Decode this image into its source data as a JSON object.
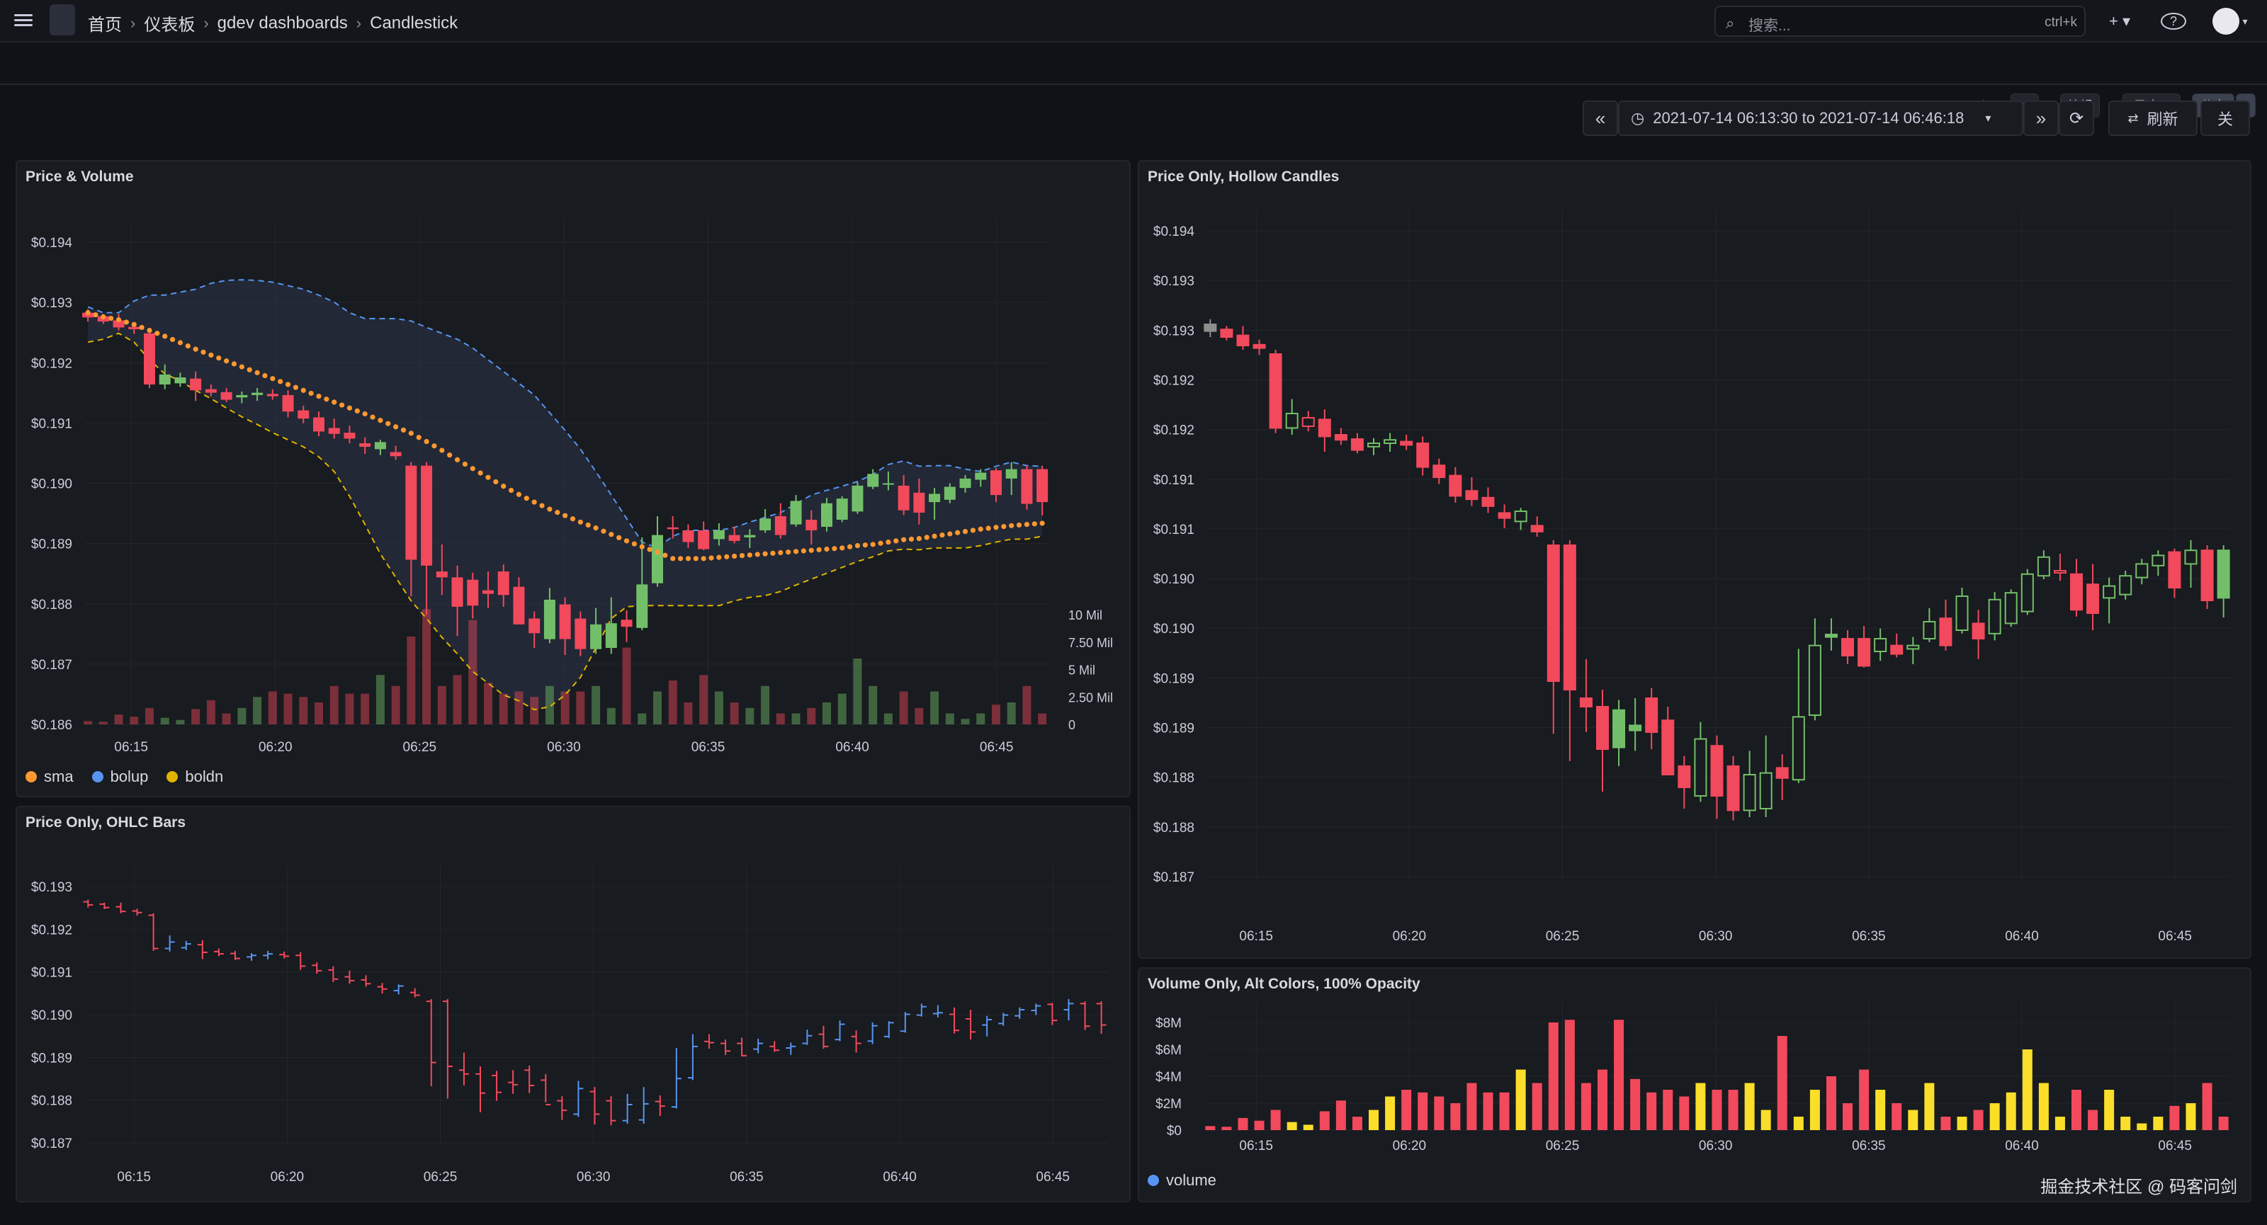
{
  "topbar": {
    "breadcrumb": [
      "首页",
      "仪表板",
      "gdev dashboards",
      "Candlestick"
    ],
    "search_placeholder": "搜索...",
    "search_shortcut": "ctrl+k",
    "add_label": "+ ▾",
    "help_label": "?"
  },
  "toolbar": {
    "star_icon": "star-icon",
    "edit_label": "编辑",
    "export_label": "导出 ▾",
    "share_label": "分享",
    "time_range": "2021-07-14 06:13:30 to 2021-07-14 06:46:18",
    "refresh_label": "刷新",
    "off_label": "关"
  },
  "colors": {
    "up": "#73bf69",
    "down": "#f2495c",
    "ohlc_up": "#5794f2",
    "yellow": "#fade2a",
    "sma": "#ff9830",
    "bolup": "#5794f2",
    "boldn": "#e0b400",
    "band": "#2a3244"
  },
  "watermark": "掘金技术社区 @ 码客问剑",
  "chart_data": [
    {
      "id": "price_volume",
      "title": "Price & Volume",
      "type": "candlestick",
      "xlabels": [
        "06:15",
        "06:20",
        "06:25",
        "06:30",
        "06:35",
        "06:40",
        "06:45"
      ],
      "xticks_min": [
        15,
        20,
        25,
        30,
        35,
        40,
        45
      ],
      "xlim_min": [
        13.4,
        46.8
      ],
      "ylabels": [
        "$0.194",
        "$0.193",
        "$0.192",
        "$0.191",
        "$0.190",
        "$0.189",
        "$0.188",
        "$0.187",
        "$0.186"
      ],
      "ylim": [
        0.186,
        0.1942
      ],
      "vol_labels": [
        "10 Mil",
        "7.50 Mil",
        "5 Mil",
        "2.50 Mil",
        "0"
      ],
      "vol_max": 10000000,
      "legend": [
        {
          "name": "sma",
          "color": "#ff9830"
        },
        {
          "name": "bolup",
          "color": "#5794f2"
        },
        {
          "name": "boldn",
          "color": "#e0b400"
        }
      ],
      "ohlc": [
        [
          0.193,
          0.19306,
          0.19285,
          0.19292
        ],
        [
          0.19294,
          0.19298,
          0.19281,
          0.19285
        ],
        [
          0.19287,
          0.19298,
          0.1927,
          0.19275
        ],
        [
          0.19276,
          0.19282,
          0.19264,
          0.19272
        ],
        [
          0.19265,
          0.1927,
          0.19172,
          0.19178
        ],
        [
          0.19178,
          0.19212,
          0.1917,
          0.19195
        ],
        [
          0.1918,
          0.19198,
          0.19174,
          0.1919
        ],
        [
          0.19188,
          0.192,
          0.1915,
          0.19168
        ],
        [
          0.1917,
          0.19178,
          0.19158,
          0.19164
        ],
        [
          0.19165,
          0.19172,
          0.19148,
          0.19152
        ],
        [
          0.19156,
          0.19166,
          0.19146,
          0.1916
        ],
        [
          0.1916,
          0.19172,
          0.1915,
          0.19164
        ],
        [
          0.19162,
          0.1917,
          0.19152,
          0.19158
        ],
        [
          0.1916,
          0.19168,
          0.19122,
          0.19132
        ],
        [
          0.19134,
          0.19142,
          0.19112,
          0.1912
        ],
        [
          0.19122,
          0.19132,
          0.1909,
          0.19098
        ],
        [
          0.19104,
          0.1912,
          0.19086,
          0.19094
        ],
        [
          0.19096,
          0.19108,
          0.19078,
          0.19086
        ],
        [
          0.19078,
          0.19088,
          0.1906,
          0.19072
        ],
        [
          0.19068,
          0.19084,
          0.19058,
          0.1908
        ],
        [
          0.19063,
          0.19074,
          0.1905,
          0.19056
        ],
        [
          0.1904,
          0.19046,
          0.18818,
          0.1888
        ],
        [
          0.1904,
          0.19046,
          0.18786,
          0.1887
        ],
        [
          0.1886,
          0.18906,
          0.1882,
          0.1885
        ],
        [
          0.1885,
          0.1887,
          0.1875,
          0.188
        ],
        [
          0.18846,
          0.18858,
          0.1878,
          0.18802
        ],
        [
          0.18828,
          0.1886,
          0.18798,
          0.18822
        ],
        [
          0.1886,
          0.18872,
          0.188,
          0.1882
        ],
        [
          0.18834,
          0.1885,
          0.18776,
          0.1877
        ],
        [
          0.1878,
          0.18792,
          0.1873,
          0.18755
        ],
        [
          0.18745,
          0.18832,
          0.18738,
          0.18812
        ],
        [
          0.18804,
          0.18816,
          0.18718,
          0.18745
        ],
        [
          0.1878,
          0.18792,
          0.18716,
          0.18728
        ],
        [
          0.18728,
          0.18798,
          0.1872,
          0.1877
        ],
        [
          0.1873,
          0.18816,
          0.1872,
          0.18772
        ],
        [
          0.18778,
          0.18794,
          0.1874,
          0.18766
        ],
        [
          0.18764,
          0.18918,
          0.1876,
          0.18838
        ],
        [
          0.1884,
          0.18954,
          0.18834,
          0.18922
        ],
        [
          0.18935,
          0.18954,
          0.18916,
          0.18932
        ],
        [
          0.1893,
          0.1894,
          0.189,
          0.1891
        ],
        [
          0.1893,
          0.18945,
          0.18896,
          0.18898
        ],
        [
          0.18915,
          0.18942,
          0.18904,
          0.1893
        ],
        [
          0.18922,
          0.18936,
          0.18908,
          0.18912
        ],
        [
          0.18918,
          0.18932,
          0.189,
          0.18922
        ],
        [
          0.1893,
          0.18966,
          0.18926,
          0.1895
        ],
        [
          0.18954,
          0.18976,
          0.18916,
          0.18922
        ],
        [
          0.1894,
          0.1899,
          0.18936,
          0.1898
        ],
        [
          0.18948,
          0.18964,
          0.18906,
          0.1893
        ],
        [
          0.18936,
          0.18985,
          0.18928,
          0.18976
        ],
        [
          0.18948,
          0.18988,
          0.18944,
          0.18984
        ],
        [
          0.18962,
          0.19012,
          0.18958,
          0.19006
        ],
        [
          0.19004,
          0.19034,
          0.19,
          0.19026
        ],
        [
          0.19008,
          0.1903,
          0.18998,
          0.1901
        ],
        [
          0.19006,
          0.19024,
          0.18956,
          0.18964
        ],
        [
          0.18994,
          0.19018,
          0.1894,
          0.1896
        ],
        [
          0.18978,
          0.19002,
          0.18948,
          0.18992
        ],
        [
          0.18982,
          0.1901,
          0.18976,
          0.19004
        ],
        [
          0.19002,
          0.19024,
          0.18994,
          0.19018
        ],
        [
          0.19016,
          0.19034,
          0.19004,
          0.19028
        ],
        [
          0.19032,
          0.19036,
          0.18978,
          0.1899
        ],
        [
          0.19018,
          0.19046,
          0.1899,
          0.19034
        ],
        [
          0.19034,
          0.1904,
          0.18965,
          0.18975
        ],
        [
          0.19034,
          0.1904,
          0.18955,
          0.18978
        ]
      ],
      "volume": [
        300000,
        250000,
        900000,
        700000,
        1500000,
        600000,
        400000,
        1400000,
        2200000,
        1000000,
        1500000,
        2500000,
        3000000,
        2800000,
        2500000,
        2000000,
        3500000,
        2800000,
        2800000,
        4500000,
        3500000,
        8000000,
        15000000,
        3500000,
        4500000,
        9500000,
        3800000,
        2800000,
        3000000,
        2500000,
        3500000,
        3000000,
        3000000,
        3500000,
        1500000,
        7000000,
        1000000,
        3000000,
        4000000,
        2000000,
        4500000,
        3000000,
        2000000,
        1500000,
        3500000,
        1000000,
        1000000,
        1500000,
        2000000,
        2800000,
        6000000,
        3500000,
        1000000,
        3000000,
        1500000,
        3000000,
        1000000,
        500000,
        1000000,
        1800000,
        2000000,
        3500000,
        1000000
      ],
      "sma": [
        0.193,
        0.19293,
        0.19288,
        0.1928,
        0.1927,
        0.1926,
        0.19249,
        0.19238,
        0.19228,
        0.19218,
        0.19208,
        0.19198,
        0.19188,
        0.19178,
        0.19168,
        0.19158,
        0.19148,
        0.19138,
        0.19128,
        0.19117,
        0.19106,
        0.19095,
        0.19081,
        0.19066,
        0.1905,
        0.19035,
        0.1902,
        0.19005,
        0.18991,
        0.18978,
        0.18966,
        0.18955,
        0.18944,
        0.18934,
        0.18923,
        0.18912,
        0.18902,
        0.18893,
        0.18882,
        0.18882,
        0.18882,
        0.18884,
        0.18886,
        0.18888,
        0.1889,
        0.18892,
        0.18894,
        0.18896,
        0.18898,
        0.189,
        0.18904,
        0.18906,
        0.1891,
        0.18914,
        0.18916,
        0.1892,
        0.18924,
        0.18928,
        0.18932,
        0.18935,
        0.18938,
        0.1894,
        0.18942
      ],
      "bolup": [
        0.1931,
        0.193,
        0.193,
        0.1932,
        0.1933,
        0.1933,
        0.19335,
        0.1934,
        0.1935,
        0.19355,
        0.19356,
        0.19355,
        0.19352,
        0.19346,
        0.1934,
        0.1933,
        0.19318,
        0.193,
        0.1929,
        0.1929,
        0.1929,
        0.19286,
        0.19275,
        0.19265,
        0.19255,
        0.1924,
        0.1922,
        0.192,
        0.1918,
        0.1916,
        0.1913,
        0.191,
        0.19068,
        0.1903,
        0.1899,
        0.1895,
        0.1891,
        0.189,
        0.1892,
        0.1893,
        0.1893,
        0.1893,
        0.18935,
        0.18944,
        0.18952,
        0.1896,
        0.18975,
        0.1899,
        0.18998,
        0.19005,
        0.19013,
        0.19025,
        0.19042,
        0.19048,
        0.19039,
        0.1904,
        0.1904,
        0.19034,
        0.1903,
        0.19039,
        0.19046,
        0.1904,
        0.19039
      ],
      "boldn": [
        0.1925,
        0.19255,
        0.19265,
        0.1925,
        0.1922,
        0.19196,
        0.19184,
        0.19168,
        0.19154,
        0.19138,
        0.19123,
        0.1911,
        0.19096,
        0.19084,
        0.19072,
        0.19055,
        0.1903,
        0.18988,
        0.1894,
        0.1889,
        0.1885,
        0.1881,
        0.1878,
        0.18748,
        0.1872,
        0.1869,
        0.1867,
        0.1865,
        0.1864,
        0.18625,
        0.1863,
        0.1865,
        0.1868,
        0.1873,
        0.1878,
        0.188,
        0.18802,
        0.18802,
        0.18802,
        0.18802,
        0.18802,
        0.18802,
        0.1881,
        0.18816,
        0.18819,
        0.18826,
        0.18837,
        0.18847,
        0.18857,
        0.18867,
        0.18877,
        0.18885,
        0.18895,
        0.18898,
        0.18897,
        0.189,
        0.189,
        0.189,
        0.18904,
        0.1891,
        0.18915,
        0.18915,
        0.1892
      ]
    },
    {
      "id": "ohlc_bars",
      "title": "Price Only, OHLC Bars",
      "type": "ohlc",
      "xlabels": [
        "06:15",
        "06:20",
        "06:25",
        "06:30",
        "06:35",
        "06:40",
        "06:45"
      ],
      "xticks_min": [
        15,
        20,
        25,
        30,
        35,
        40,
        45
      ],
      "xlim_min": [
        13.4,
        46.8
      ],
      "ylabels": [
        "$0.193",
        "$0.192",
        "$0.191",
        "$0.190",
        "$0.189",
        "$0.188",
        "$0.187"
      ],
      "ylim": [
        0.1867,
        0.1934
      ]
    },
    {
      "id": "hollow",
      "title": "Price Only, Hollow Candles",
      "type": "candlestick-hollow",
      "xlabels": [
        "06:15",
        "06:20",
        "06:25",
        "06:30",
        "06:35",
        "06:40",
        "06:45"
      ],
      "xticks_min": [
        15,
        20,
        25,
        30,
        35,
        40,
        45
      ],
      "xlim_min": [
        13.4,
        46.8
      ],
      "ylabels": [
        "$0.194",
        "$0.193",
        "$0.193",
        "$0.192",
        "$0.192",
        "$0.191",
        "$0.191",
        "$0.190",
        "$0.190",
        "$0.189",
        "$0.189",
        "$0.188",
        "$0.188",
        "$0.187"
      ],
      "ylim": [
        0.1865,
        0.1941
      ]
    },
    {
      "id": "volume",
      "title": "Volume Only, Alt Colors, 100% Opacity",
      "type": "bar",
      "xlabels": [
        "06:15",
        "06:20",
        "06:25",
        "06:30",
        "06:35",
        "06:40",
        "06:45"
      ],
      "xticks_min": [
        15,
        20,
        25,
        30,
        35,
        40,
        45
      ],
      "xlim_min": [
        13.4,
        46.8
      ],
      "ylabels": [
        "$8M",
        "$6M",
        "$4M",
        "$2M",
        "$0"
      ],
      "ylim": [
        0,
        8000000
      ],
      "legend": [
        {
          "name": "volume",
          "color": "#5794f2"
        }
      ]
    }
  ]
}
